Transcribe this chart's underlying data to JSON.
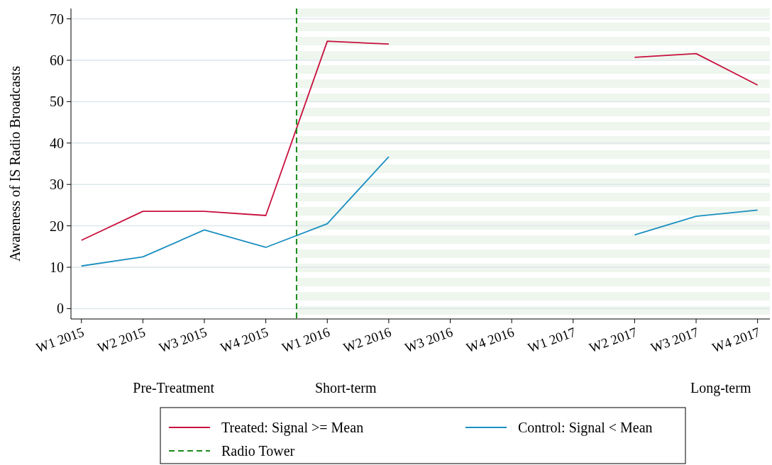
{
  "chart_data": {
    "type": "line",
    "ylabel": "Awareness of IS Radio Broadcasts",
    "categories": [
      "W1 2015",
      "W2 2015",
      "W3 2015",
      "W4 2015",
      "W1 2016",
      "W2 2016",
      "W3 2016",
      "W4 2016",
      "W1 2017",
      "W2 2017",
      "W3 2017",
      "W4 2017"
    ],
    "ylim": [
      -2.5,
      72.5
    ],
    "yticks": [
      0,
      10,
      20,
      30,
      40,
      50,
      60,
      70
    ],
    "grid": "y",
    "series": [
      {
        "name": "Treated: Signal >= Mean",
        "color": "#c8103e",
        "values": [
          16.5,
          23.5,
          23.5,
          22.5,
          64.6,
          63.9,
          null,
          null,
          null,
          60.7,
          61.6,
          54.0
        ]
      },
      {
        "name": "Control: Signal < Mean",
        "color": "#1a8fc0",
        "values": [
          10.3,
          12.5,
          19.0,
          14.8,
          20.5,
          36.7,
          null,
          null,
          null,
          17.8,
          22.3,
          23.8
        ]
      }
    ],
    "bands": [
      {
        "axis": "x",
        "from": "W1 2016",
        "to": "W4 2017",
        "color": "#eef6ee"
      }
    ],
    "annotations": [
      "Pre-Treatment",
      "Short-term",
      "Long-term",
      "Radio Tower"
    ],
    "legend": "bottom"
  }
}
